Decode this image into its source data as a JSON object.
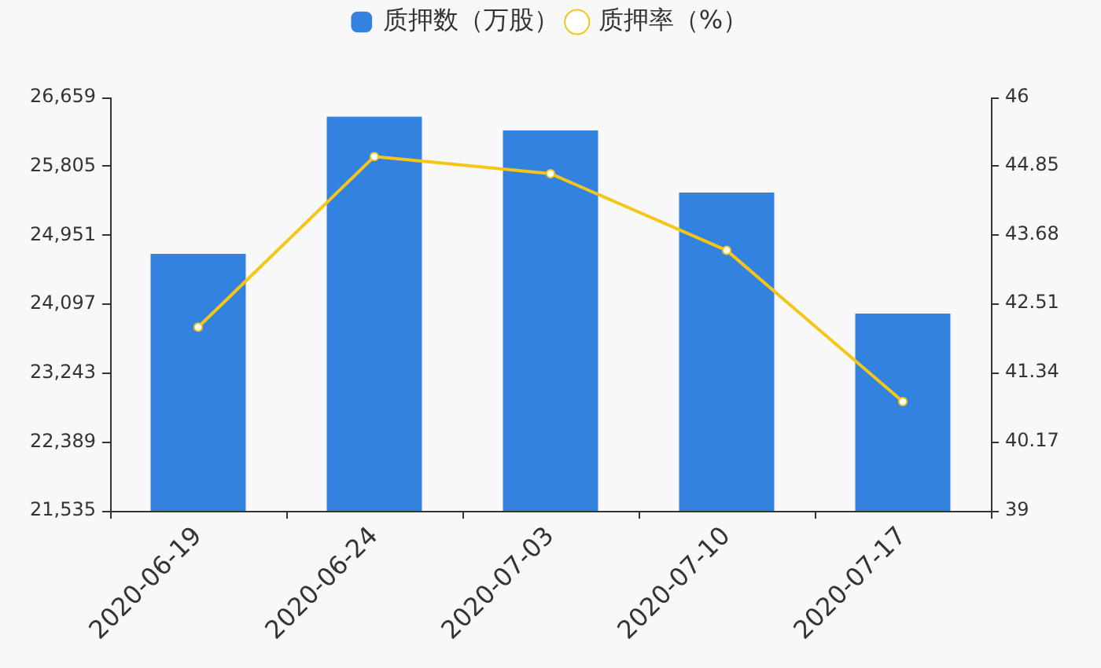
{
  "chart_data": {
    "type": "bar",
    "categories": [
      "2020-06-19",
      "2020-06-24",
      "2020-07-03",
      "2020-07-10",
      "2020-07-17"
    ],
    "series": [
      {
        "name": "质押数（万股）",
        "color": "#3382e0",
        "values": [
          24720,
          26420,
          26250,
          25480,
          23980
        ]
      },
      {
        "name": "质押率（%）",
        "type": "line",
        "axis": "y2",
        "color": "#f5c518",
        "values": [
          42.11,
          45.0,
          44.71,
          43.41,
          40.85
        ]
      }
    ],
    "ylim": [
      21535,
      26659
    ],
    "yticks": [
      {
        "value": 21535,
        "label": "21,535"
      },
      {
        "value": 22389,
        "label": "22,389"
      },
      {
        "value": 23243,
        "label": "23,243"
      },
      {
        "value": 24097,
        "label": "24,097"
      },
      {
        "value": 24951,
        "label": "24,951"
      },
      {
        "value": 25805,
        "label": "25,805"
      },
      {
        "value": 26659,
        "label": "26,659"
      }
    ],
    "y2lim": [
      39,
      46
    ],
    "y2ticks": [
      39,
      40.17,
      41.34,
      42.51,
      43.68,
      44.85,
      46
    ],
    "legend": "top",
    "grid": false,
    "marker": "circle",
    "line_style": "solid"
  }
}
